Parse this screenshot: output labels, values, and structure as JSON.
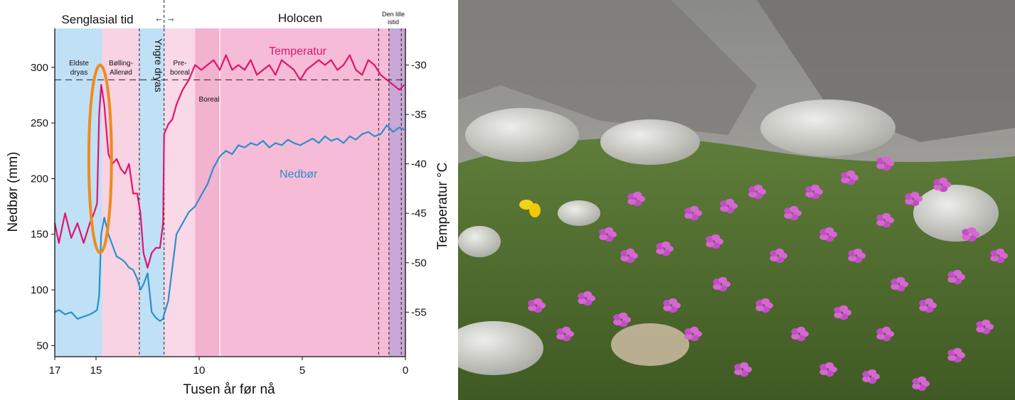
{
  "chart_data": {
    "type": "line",
    "periods_top": {
      "left": "Senglasial tid",
      "right": "Holocen",
      "arrows": "←  →",
      "small": [
        "Den lille",
        "istid"
      ]
    },
    "zones": [
      {
        "name_lines": [
          "Eldste",
          "dryas"
        ],
        "from": 17,
        "to": 14.7,
        "color": "#bfe0f5"
      },
      {
        "name_lines": [
          "Bølling-",
          "Allerød"
        ],
        "from": 14.7,
        "to": 12.9,
        "color": "#f7d3e4"
      },
      {
        "name_lines": [
          "Yngre dryas"
        ],
        "from": 12.9,
        "to": 11.7,
        "color": "#bfe0f5"
      },
      {
        "name_lines": [
          "Pre-",
          "boreal"
        ],
        "from": 11.7,
        "to": 10.2,
        "color": "#f9d8e8"
      },
      {
        "name_lines": [
          "Boreal"
        ],
        "from": 10.2,
        "to": 9.0,
        "color": "#f2b2d0"
      },
      {
        "name_lines": [],
        "from": 9.0,
        "to": 0.8,
        "color": "#f6bbd7"
      },
      {
        "name_lines": [],
        "from": 0.8,
        "to": 0.0,
        "color": "#c9a7d6"
      }
    ],
    "x": {
      "label": "Tusen år før nå",
      "ticks": [
        17,
        15,
        10,
        5,
        0
      ],
      "range": [
        17,
        0
      ]
    },
    "y_left": {
      "label": "Nedbør (mm)",
      "ticks": [
        50,
        100,
        150,
        200,
        250,
        300
      ],
      "range": [
        40,
        335
      ]
    },
    "y_right": {
      "label": "Temperatur °C",
      "ticks": [
        -30,
        -35,
        -40,
        -45,
        -50,
        -55
      ],
      "range": [
        -59.5,
        -26.3
      ]
    },
    "reference_line_temp": -31.5,
    "highlight_ellipse": {
      "x_center": 14.8,
      "temp_center": -39.5,
      "x_halfwidth": 0.55,
      "temp_halfwidth": 9.5
    },
    "series": [
      {
        "name": "Temperatur",
        "color": "#e0146e",
        "axis": "right",
        "x": [
          17.0,
          16.8,
          16.5,
          16.2,
          15.9,
          15.6,
          15.3,
          15.1,
          14.95,
          14.85,
          14.75,
          14.6,
          14.4,
          14.2,
          14.0,
          13.8,
          13.6,
          13.4,
          13.2,
          13.0,
          12.85,
          12.7,
          12.5,
          12.3,
          12.1,
          11.9,
          11.75,
          11.7,
          11.5,
          11.3,
          11.1,
          10.8,
          10.5,
          10.2,
          9.9,
          9.6,
          9.3,
          9.0,
          8.7,
          8.4,
          8.1,
          7.8,
          7.5,
          7.2,
          6.9,
          6.6,
          6.3,
          6.0,
          5.7,
          5.4,
          5.1,
          4.8,
          4.5,
          4.2,
          3.9,
          3.6,
          3.3,
          3.0,
          2.7,
          2.4,
          2.1,
          1.8,
          1.5,
          1.2,
          0.9,
          0.6,
          0.3,
          0.05
        ],
        "y": [
          -46,
          -48,
          -45,
          -47.5,
          -46,
          -48,
          -46,
          -45,
          -44,
          -35,
          -32,
          -34,
          -39,
          -40,
          -39.5,
          -40.5,
          -41,
          -40,
          -43,
          -43,
          -45,
          -49,
          -50.5,
          -49,
          -48.5,
          -48.5,
          -46,
          -37,
          -36,
          -35.5,
          -34,
          -32.5,
          -31.5,
          -30,
          -30.5,
          -30,
          -29.5,
          -30.5,
          -29,
          -30.5,
          -30,
          -30.5,
          -29.5,
          -31,
          -30.5,
          -30,
          -31,
          -29.5,
          -30,
          -30.5,
          -31.5,
          -30.5,
          -30,
          -29.5,
          -30,
          -29.5,
          -30.5,
          -30,
          -29,
          -30.5,
          -31,
          -29.5,
          -30,
          -31,
          -31.5,
          -32,
          -32.5,
          -32
        ]
      },
      {
        "name": "Nedbør",
        "color": "#2b8fcc",
        "axis": "left",
        "x": [
          17.0,
          16.8,
          16.5,
          16.2,
          15.9,
          15.6,
          15.3,
          15.1,
          14.95,
          14.85,
          14.75,
          14.6,
          14.4,
          14.2,
          14.0,
          13.8,
          13.6,
          13.4,
          13.2,
          13.0,
          12.85,
          12.7,
          12.5,
          12.3,
          12.1,
          11.9,
          11.75,
          11.7,
          11.5,
          11.3,
          11.1,
          10.8,
          10.5,
          10.2,
          9.9,
          9.6,
          9.3,
          9.0,
          8.7,
          8.4,
          8.1,
          7.8,
          7.5,
          7.2,
          6.9,
          6.6,
          6.3,
          6.0,
          5.7,
          5.4,
          5.1,
          4.8,
          4.5,
          4.2,
          3.9,
          3.6,
          3.3,
          3.0,
          2.7,
          2.4,
          2.1,
          1.8,
          1.5,
          1.2,
          0.9,
          0.6,
          0.3,
          0.05
        ],
        "y": [
          80,
          82,
          78,
          80,
          74,
          76,
          78,
          80,
          82,
          95,
          150,
          165,
          150,
          140,
          130,
          128,
          125,
          120,
          118,
          110,
          100,
          105,
          115,
          80,
          75,
          72,
          74,
          78,
          90,
          120,
          150,
          160,
          170,
          175,
          185,
          195,
          210,
          220,
          225,
          222,
          230,
          228,
          232,
          230,
          234,
          228,
          232,
          230,
          235,
          232,
          230,
          233,
          236,
          232,
          238,
          234,
          236,
          232,
          238,
          235,
          240,
          242,
          238,
          240,
          248,
          242,
          246,
          244
        ]
      }
    ]
  },
  "photo": {
    "alt_subject": "pink-flowers-on-rocks"
  }
}
